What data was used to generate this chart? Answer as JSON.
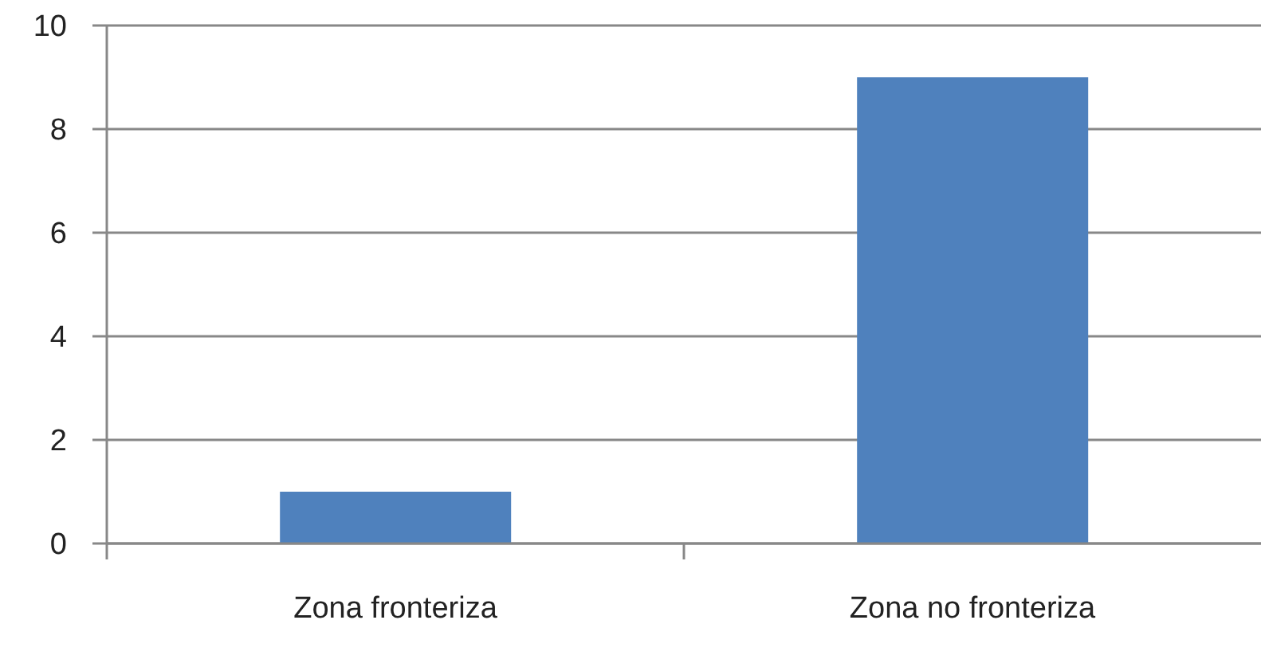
{
  "chart_data": {
    "type": "bar",
    "categories": [
      "Zona fronteriza",
      "Zona no fronteriza"
    ],
    "values": [
      1,
      9
    ],
    "color": "#4f81bd",
    "ylim": [
      0,
      10
    ],
    "yticks": [
      0,
      2,
      4,
      6,
      8,
      10
    ],
    "grid": "y"
  }
}
